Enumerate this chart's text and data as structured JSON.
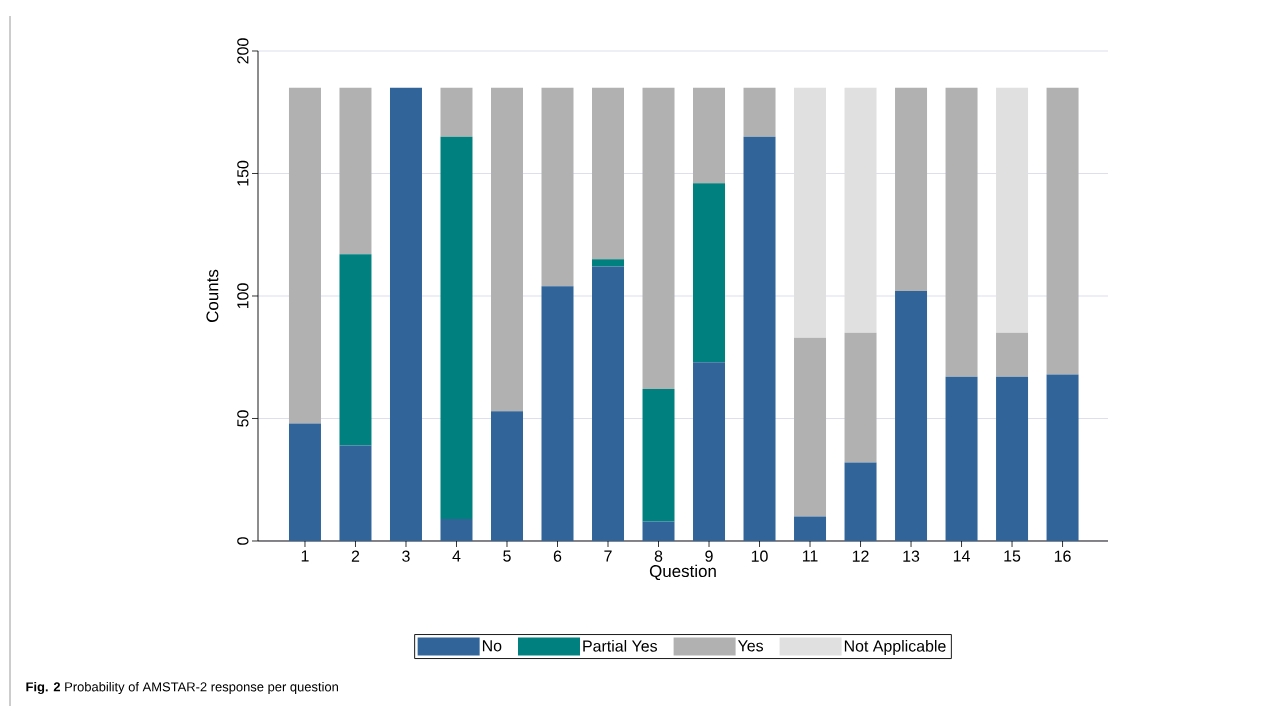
{
  "chart_data": {
    "type": "bar",
    "stacked": true,
    "xlabel": "Question",
    "ylabel": "Counts",
    "categories": [
      "1",
      "2",
      "3",
      "4",
      "5",
      "6",
      "7",
      "8",
      "9",
      "10",
      "11",
      "12",
      "13",
      "14",
      "15",
      "16"
    ],
    "series": [
      {
        "name": "No",
        "color": "#31659a",
        "values": [
          48,
          39,
          185,
          9,
          53,
          104,
          112,
          8,
          73,
          165,
          10,
          32,
          102,
          67,
          67,
          68
        ]
      },
      {
        "name": "Partial Yes",
        "color": "#00807f",
        "values": [
          0,
          78,
          0,
          156,
          0,
          0,
          3,
          54,
          73,
          0,
          0,
          0,
          0,
          0,
          0,
          0
        ]
      },
      {
        "name": "Yes",
        "color": "#b1b1b1",
        "values": [
          137,
          68,
          0,
          20,
          132,
          81,
          70,
          123,
          39,
          20,
          73,
          53,
          83,
          118,
          18,
          117
        ]
      },
      {
        "name": "Not Applicable",
        "color": "#e0e0e0",
        "values": [
          0,
          0,
          0,
          0,
          0,
          0,
          0,
          0,
          0,
          0,
          102,
          100,
          0,
          0,
          100,
          0
        ]
      }
    ],
    "ylim": [
      0,
      200
    ],
    "yticks": [
      0,
      50,
      100,
      150,
      200
    ],
    "grid": "y",
    "legend": "bottom",
    "annotations": [
      "**Fig. 2** Probability of AMSTAR-2 response per question"
    ]
  }
}
